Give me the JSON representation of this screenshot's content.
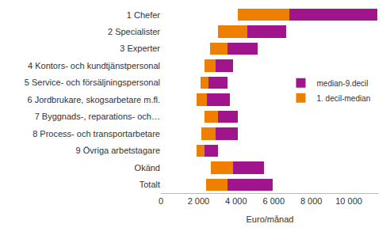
{
  "chart_data": {
    "type": "bar",
    "orientation": "horizontal",
    "stacked": true,
    "x_label": "Euro/månad",
    "categories": [
      "1 Chefer",
      "2 Specialister",
      "3 Experter",
      "4 Kontors- och kundtjänstpersonal",
      "5 Service- och försäljningspersonal",
      "6 Jordbrukare, skogsarbetare m.fl.",
      "7 Byggnads-, reparations- och…",
      "8 Process- och transportarbetare",
      "9 Övriga arbetstagare",
      "Okänd",
      "Totalt"
    ],
    "base": [
      4100,
      3050,
      2600,
      2300,
      2100,
      1900,
      2300,
      2150,
      1900,
      2650,
      2400
    ],
    "series": [
      {
        "name": "1. decil-median",
        "color": "#ee7f00",
        "values": [
          2750,
          1550,
          950,
          600,
          450,
          550,
          750,
          750,
          400,
          1200,
          1150
        ]
      },
      {
        "name": "median-9.decil",
        "color": "#a0158c",
        "values": [
          4650,
          2050,
          1600,
          950,
          1000,
          1200,
          1050,
          1200,
          750,
          1650,
          2400
        ]
      }
    ],
    "xlim": [
      0,
      11600
    ],
    "xticks": [
      0,
      {
        "value": 2000,
        "label": "2 000"
      },
      {
        "value": 4000,
        "label": "4 000"
      },
      {
        "value": 6000,
        "label": "6 000"
      },
      {
        "value": 8000,
        "label": "8 000"
      },
      {
        "value": 10000,
        "label": "10 000"
      }
    ],
    "grid": false,
    "legend": "right"
  }
}
